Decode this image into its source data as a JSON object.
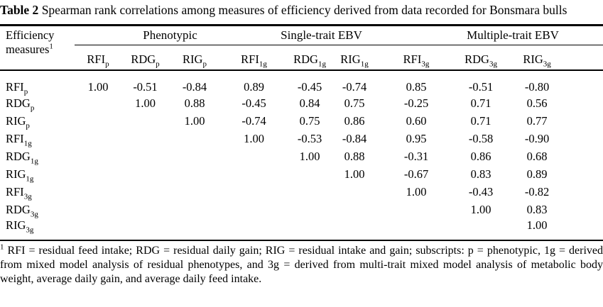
{
  "caption": {
    "label": "Table 2",
    "text": "Spearman rank correlations among measures of efficiency derived from data recorded for Bonsmara bulls"
  },
  "table": {
    "stub": {
      "line1": "Efficiency",
      "line2": "measures",
      "sup": "1"
    },
    "groups": [
      {
        "label": "Phenotypic"
      },
      {
        "label": "Single-trait EBV"
      },
      {
        "label": "Multiple-trait EBV"
      }
    ],
    "columns": [
      {
        "base": "RFI",
        "sub": "p"
      },
      {
        "base": "RDG",
        "sub": "p"
      },
      {
        "base": "RIG",
        "sub": "p"
      },
      {
        "base": "RFI",
        "sub": "1g"
      },
      {
        "base": "RDG",
        "sub": "1g"
      },
      {
        "base": "RIG",
        "sub": "1g"
      },
      {
        "base": "RFI",
        "sub": "3g"
      },
      {
        "base": "RDG",
        "sub": "3g"
      },
      {
        "base": "RIG",
        "sub": "3g"
      }
    ],
    "rows": [
      {
        "label": {
          "base": "RFI",
          "sub": "p"
        },
        "values": [
          "1.00",
          "-0.51",
          "-0.84",
          "0.89",
          "-0.45",
          "-0.74",
          "0.85",
          "-0.51",
          "-0.80"
        ]
      },
      {
        "label": {
          "base": "RDG",
          "sub": "p"
        },
        "values": [
          "",
          "1.00",
          "0.88",
          "-0.45",
          "0.84",
          "0.75",
          "-0.25",
          "0.71",
          "0.56"
        ]
      },
      {
        "label": {
          "base": "RIG",
          "sub": "p"
        },
        "values": [
          "",
          "",
          "1.00",
          "-0.74",
          "0.75",
          "0.86",
          "0.60",
          "0.71",
          "0.77"
        ]
      },
      {
        "label": {
          "base": "RFI",
          "sub": "1g"
        },
        "values": [
          "",
          "",
          "",
          "1.00",
          "-0.53",
          "-0.84",
          "0.95",
          "-0.58",
          "-0.90"
        ]
      },
      {
        "label": {
          "base": "RDG",
          "sub": "1g"
        },
        "values": [
          "",
          "",
          "",
          "",
          "1.00",
          "0.88",
          "-0.31",
          "0.86",
          "0.68"
        ]
      },
      {
        "label": {
          "base": "RIG",
          "sub": "1g"
        },
        "values": [
          "",
          "",
          "",
          "",
          "",
          "1.00",
          "-0.67",
          "0.83",
          "0.89"
        ]
      },
      {
        "label": {
          "base": "RFI",
          "sub": "3g"
        },
        "values": [
          "",
          "",
          "",
          "",
          "",
          "",
          "1.00",
          "-0.43",
          "-0.82"
        ]
      },
      {
        "label": {
          "base": "RDG",
          "sub": "3g"
        },
        "values": [
          "",
          "",
          "",
          "",
          "",
          "",
          "",
          "1.00",
          "0.83"
        ]
      },
      {
        "label": {
          "base": "RIG",
          "sub": "3g"
        },
        "values": [
          "",
          "",
          "",
          "",
          "",
          "",
          "",
          "",
          "1.00"
        ]
      }
    ]
  },
  "footnote": {
    "sup": "1",
    "text": "RFI = residual feed intake; RDG = residual daily gain; RIG = residual intake and gain; subscripts: p = phenotypic, 1g = derived from mixed model analysis of residual phenotypes, and 3g = derived from multi-trait mixed model analysis of metabolic body weight, average daily gain, and average daily feed intake."
  }
}
